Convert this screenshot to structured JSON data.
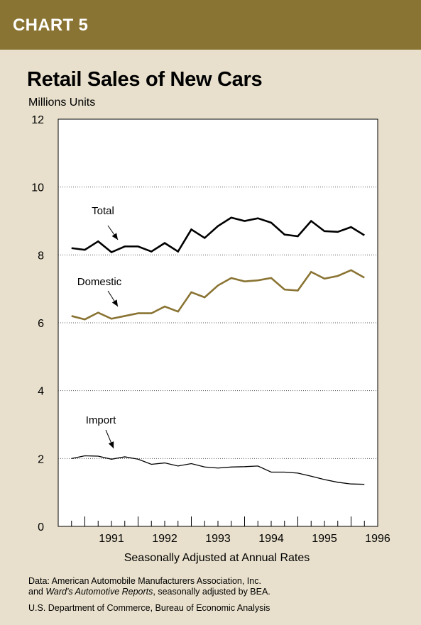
{
  "header": {
    "label": "CHART 5"
  },
  "chart_data": {
    "type": "line",
    "title": "Retail Sales of New Cars",
    "ylabel": "Millions Units",
    "xlabel": "Seasonally Adjusted at Annual Rates",
    "ylim": [
      0,
      12
    ],
    "yticks": [
      "0",
      "2",
      "4",
      "6",
      "8",
      "10",
      "12"
    ],
    "xtick_labels": [
      "1991",
      "1992",
      "1993",
      "1994",
      "1995",
      "1996"
    ],
    "x": [
      1990.75,
      1991.0,
      1991.25,
      1991.5,
      1991.75,
      1992.0,
      1992.25,
      1992.5,
      1992.75,
      1993.0,
      1993.25,
      1993.5,
      1993.75,
      1994.0,
      1994.25,
      1994.5,
      1994.75,
      1995.0,
      1995.25,
      1995.5,
      1995.75,
      1996.0,
      1996.25
    ],
    "grid": "horizontal dotted",
    "series": [
      {
        "name": "Total",
        "color": "#000000",
        "values": [
          8.2,
          8.15,
          8.4,
          8.08,
          8.25,
          8.25,
          8.1,
          8.35,
          8.1,
          8.75,
          8.5,
          8.85,
          9.1,
          9.0,
          9.08,
          8.95,
          8.6,
          8.55,
          9.0,
          8.7,
          8.68,
          8.82,
          8.58
        ]
      },
      {
        "name": "Domestic",
        "color": "#8a7433",
        "values": [
          6.2,
          6.1,
          6.3,
          6.12,
          6.2,
          6.28,
          6.28,
          6.48,
          6.33,
          6.9,
          6.75,
          7.1,
          7.32,
          7.22,
          7.25,
          7.32,
          6.98,
          6.95,
          7.5,
          7.3,
          7.38,
          7.55,
          7.33
        ]
      },
      {
        "name": "Import",
        "color": "#000000",
        "values": [
          2.0,
          2.08,
          2.07,
          1.98,
          2.05,
          1.98,
          1.83,
          1.87,
          1.78,
          1.85,
          1.75,
          1.72,
          1.75,
          1.76,
          1.78,
          1.6,
          1.6,
          1.57,
          1.48,
          1.38,
          1.3,
          1.25,
          1.24
        ]
      }
    ],
    "annotations": [
      "Total",
      "Domestic",
      "Import"
    ]
  },
  "footnote": {
    "line1": "Data: American Automobile Manufacturers Association, Inc.",
    "line2_prefix": "and ",
    "line2_italic": "Ward's Automotive Reports",
    "line2_suffix": ", seasonally adjusted by BEA."
  },
  "agency": "U.S. Department of Commerce, Bureau of Economic Analysis"
}
